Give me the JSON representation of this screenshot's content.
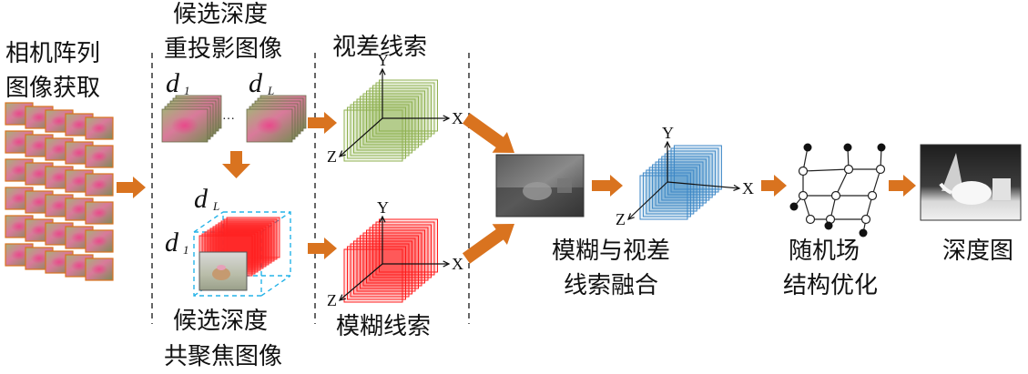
{
  "colors": {
    "arrow": "#d9731f",
    "green_volume": "#8fb050",
    "red_volume": "#ff1a1a",
    "blue_volume": "#3b86c6",
    "dashed_box": "#25b3e8",
    "divider": "#333333"
  },
  "labels": {
    "array_capture": [
      "相机阵列",
      "图像获取"
    ],
    "candidate_reproj": [
      "候选深度",
      "重投影图像"
    ],
    "candidate_focal": [
      "候选深度",
      "共聚焦图像"
    ],
    "disparity_cue": "视差线索",
    "blur_cue": "模糊线索",
    "fusion": [
      "模糊与视差",
      "线索融合"
    ],
    "mrf_opt": [
      "随机场",
      "结构优化"
    ],
    "depth_map": "深度图"
  },
  "symbols": {
    "d": "d",
    "sub_first": "1",
    "sub_last": "L",
    "ellipsis": "…"
  },
  "axes": {
    "x": "X",
    "y": "Y",
    "z": "Z"
  }
}
